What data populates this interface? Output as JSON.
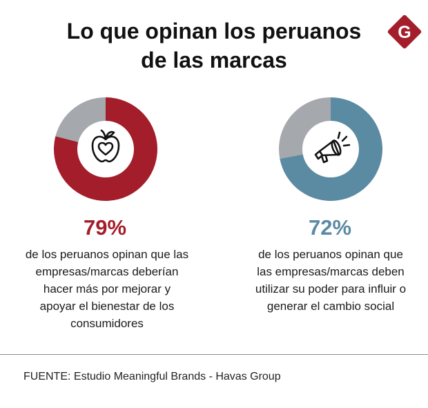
{
  "title": {
    "line1": "Lo que opinan los peruanos",
    "line2": "de las marcas"
  },
  "logo": {
    "letter": "G",
    "color": "#a41d2a",
    "icon": "gazeta-g-logo"
  },
  "chart_data": [
    {
      "type": "pie",
      "variant": "donut",
      "value": 79,
      "remainder": 21,
      "label": "79%",
      "description": [
        "de los peruanos opinan que las",
        "empresas/marcas deberían",
        "hacer más por mejorar y",
        "apoyar el bienestar de los",
        "consumidores"
      ],
      "color": "#a41d2a",
      "remainder_color": "#a5a8ac",
      "icon": "apple-heart-icon"
    },
    {
      "type": "pie",
      "variant": "donut",
      "value": 72,
      "remainder": 28,
      "label": "72%",
      "description": [
        "de los peruanos opinan que",
        "las empresas/marcas deben",
        "utilizar su poder para influir o",
        "generar el cambio social"
      ],
      "color": "#5b8aa3",
      "remainder_color": "#a5a8ac",
      "icon": "megaphone-icon"
    }
  ],
  "source": "FUENTE: Estudio Meaningful Brands - Havas Group"
}
